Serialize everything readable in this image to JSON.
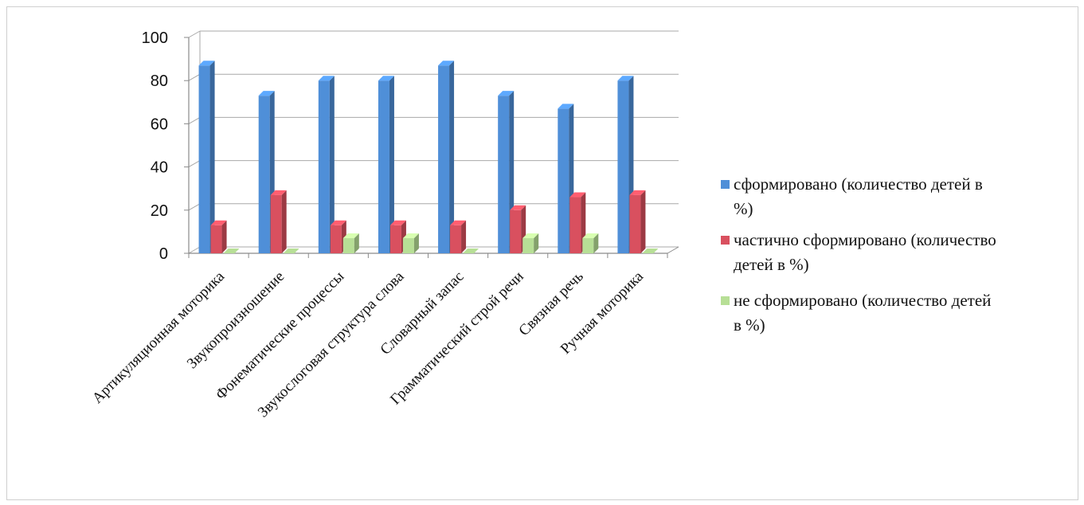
{
  "chart_data": {
    "type": "bar",
    "categories": [
      "Артикуляционная моторика",
      "Звукопроизношение",
      "Фонематические процессы",
      "Звукослоговая структура слова",
      "Словарный запас",
      "Грамматический строй речи",
      "Связная речь",
      "Ручная моторика"
    ],
    "series": [
      {
        "name": "сформировано (количество детей в %)",
        "color": "#4f8fd8",
        "values": [
          87,
          73,
          80,
          80,
          87,
          73,
          67,
          80
        ]
      },
      {
        "name": "частично сформировано (количество детей в %)",
        "color": "#d9505f",
        "values": [
          13,
          27,
          13,
          13,
          13,
          20,
          26,
          27
        ]
      },
      {
        "name": "не сформировано (количество детей в %)",
        "color": "#b7df96",
        "values": [
          0,
          0,
          7,
          7,
          0,
          7,
          7,
          0
        ]
      }
    ],
    "ylim": [
      0,
      100
    ],
    "yticks": [
      0,
      20,
      40,
      60,
      80,
      100
    ],
    "grid": true,
    "legend_position": "right",
    "style": "3d-clustered-column"
  },
  "legend_lines": [
    [
      "сформировано (количество детей в",
      "%)"
    ],
    [
      "частично сформировано (количество",
      "детей в %)"
    ],
    [
      "не сформировано (количество детей",
      "в %)"
    ]
  ]
}
